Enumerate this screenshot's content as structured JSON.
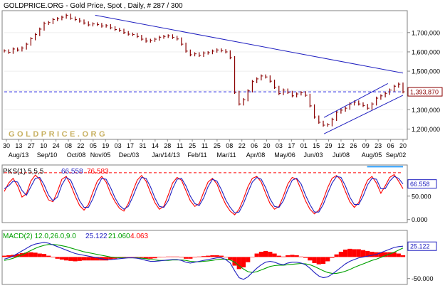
{
  "header": {
    "title": "GOLDPRICE.ORG - Gold Price, Spot , Daily, # 287 / 300"
  },
  "watermark": "GOLDPRICE.ORG",
  "colors": {
    "background": "#ffffff",
    "frame": "#808080",
    "gold": "#c8b060",
    "price_bar": "#8a0000",
    "last_close": "#8a0000",
    "trendline": "#2020c0",
    "support_line": "#2020e0",
    "pks_fast": "#ff0000",
    "pks_slow": "#2020c0",
    "pks_hline": "#30a0ff",
    "pks_ref": "#ff0000",
    "macd_hist": "#ff0000",
    "macd_line": "#2020c0",
    "signal_line": "#00a000"
  },
  "x_axis": {
    "day_labels": [
      "30",
      "13",
      "27",
      "10",
      "24",
      "08",
      "22",
      "05",
      "19",
      "03",
      "17",
      "31",
      "14",
      "28",
      "11",
      "25",
      "11",
      "25",
      "08",
      "22",
      "06",
      "20",
      "03",
      "17",
      "01",
      "15",
      "29",
      "12",
      "26",
      "09",
      "23",
      "06",
      "20"
    ],
    "month_labels": [
      "Aug/13",
      "Sep/10",
      "Oct/08",
      "Nov/05",
      "Dec/03",
      "Jan/14/13",
      "Feb/11",
      "Mar/11",
      "Apr/08",
      "May/06",
      "Jun/03",
      "Jul/08",
      "Aug/05",
      "Sep/02"
    ]
  },
  "chart_data": [
    {
      "panel": "price",
      "type": "line",
      "title": "GOLDPRICE.ORG - Gold Price, Spot , Daily, # 287 / 300",
      "y_ticks": [
        "1,700,000",
        "1,600,000",
        "1,500,000",
        "1,400,000",
        "1,300,000",
        "1,200,000"
      ],
      "ylim": [
        1150,
        1810
      ],
      "last_value_label": "1,393,870",
      "support_level": 1393,
      "series": [
        {
          "values": [
            1605,
            1598,
            1615,
            1610,
            1620,
            1640,
            1668,
            1690,
            1718,
            1748,
            1752,
            1768,
            1772,
            1780,
            1790,
            1775,
            1768,
            1760,
            1750,
            1740,
            1745,
            1742,
            1734,
            1736,
            1725,
            1716,
            1712,
            1700,
            1692,
            1690,
            1680,
            1666,
            1656,
            1660,
            1666,
            1676,
            1680,
            1683,
            1675,
            1667,
            1640,
            1604,
            1585,
            1590,
            1582,
            1594,
            1596,
            1604,
            1610,
            1606,
            1600,
            1570,
            1390,
            1330,
            1352,
            1398,
            1446,
            1460,
            1475,
            1470,
            1448,
            1416,
            1384,
            1402,
            1390,
            1372,
            1382,
            1388,
            1375,
            1320,
            1262,
            1235,
            1220,
            1222,
            1250,
            1288,
            1298,
            1308,
            1330,
            1340,
            1330,
            1322,
            1308,
            1330,
            1360,
            1372,
            1385,
            1402,
            1422,
            1433,
            1393
          ]
        }
      ],
      "trendlines": [
        {
          "name": "downtrend",
          "from": [
            0.228,
            1790
          ],
          "to": [
            1.0,
            1490
          ]
        },
        {
          "name": "channel upper",
          "from": [
            0.802,
            1260
          ],
          "to": [
            0.962,
            1436
          ]
        },
        {
          "name": "channel lower",
          "from": [
            0.802,
            1175
          ],
          "to": [
            1.0,
            1375
          ]
        }
      ]
    },
    {
      "panel": "pks",
      "type": "line",
      "label": "PKS(1) 5,5,5",
      "value_1": "66.558",
      "value_2": "76.583",
      "last_value_label": "66.558",
      "y_ticks": [
        "50.000",
        "0.000"
      ],
      "ylim": [
        -5,
        115
      ],
      "reference_level": 100,
      "signal_level": 113,
      "series": [
        {
          "values": [
            60,
            78,
            88,
            72,
            48,
            55,
            82,
            95,
            86,
            62,
            42,
            38,
            60,
            86,
            92,
            74,
            50,
            30,
            20,
            32,
            58,
            82,
            92,
            80,
            56,
            38,
            24,
            18,
            34,
            60,
            84,
            94,
            82,
            58,
            36,
            22,
            28,
            52,
            78,
            90,
            84,
            62,
            40,
            28,
            34,
            58,
            80,
            88,
            76,
            52,
            32,
            18,
            10,
            22,
            44,
            70,
            88,
            92,
            80,
            56,
            34,
            22,
            28,
            50,
            76,
            90,
            86,
            64,
            40,
            22,
            12,
            20,
            42,
            68,
            88,
            94,
            84,
            60,
            38,
            26,
            36,
            62,
            84,
            92,
            78,
            56,
            72,
            90,
            96,
            82,
            66
          ]
        },
        {
          "values": [
            66,
            72,
            82,
            80,
            62,
            52,
            70,
            88,
            90,
            74,
            52,
            40,
            48,
            74,
            90,
            84,
            62,
            40,
            26,
            26,
            44,
            70,
            88,
            86,
            68,
            46,
            30,
            22,
            28,
            48,
            72,
            90,
            88,
            70,
            46,
            28,
            26,
            40,
            66,
            86,
            88,
            72,
            50,
            34,
            30,
            46,
            70,
            86,
            82,
            64,
            42,
            26,
            14,
            16,
            34,
            58,
            80,
            90,
            86,
            68,
            44,
            28,
            26,
            40,
            64,
            84,
            88,
            76,
            52,
            32,
            16,
            16,
            32,
            56,
            78,
            92,
            90,
            72,
            48,
            32,
            32,
            50,
            74,
            88,
            86,
            66,
            66,
            82,
            92,
            88,
            76
          ]
        }
      ]
    },
    {
      "panel": "macd",
      "type": "line",
      "label": "MACD(2) 12.0,26.0,9.0",
      "value_1": "25.122",
      "value_2": "21.060",
      "value_3": "4.063",
      "last_value_label": "25.122",
      "y_ticks": [
        "-50.000"
      ],
      "ylim": [
        -62,
        60
      ],
      "series": [
        {
          "values": [
            -5,
            -2,
            2,
            8,
            14,
            20,
            26,
            30,
            32,
            34,
            32,
            28,
            24,
            20,
            16,
            12,
            8,
            6,
            4,
            2,
            0,
            -2,
            -4,
            -6,
            -6,
            -5,
            -4,
            -3,
            -2,
            -2,
            -3,
            -5,
            -8,
            -10,
            -10,
            -9,
            -8,
            -7,
            -6,
            -6,
            -8,
            -12,
            -14,
            -12,
            -10,
            -8,
            -6,
            -4,
            -2,
            -2,
            -6,
            -14,
            -32,
            -48,
            -52,
            -46,
            -36,
            -26,
            -18,
            -12,
            -10,
            -12,
            -16,
            -18,
            -14,
            -12,
            -12,
            -14,
            -18,
            -26,
            -36,
            -44,
            -48,
            -46,
            -40,
            -32,
            -24,
            -16,
            -10,
            -6,
            -2,
            0,
            2,
            4,
            6,
            10,
            14,
            18,
            22,
            24,
            25
          ]
        },
        {
          "values": [
            -8,
            -6,
            -3,
            1,
            5,
            10,
            15,
            20,
            24,
            27,
            29,
            29,
            28,
            26,
            24,
            21,
            18,
            15,
            12,
            10,
            8,
            6,
            4,
            2,
            0,
            -1,
            -2,
            -2,
            -2,
            -2,
            -2,
            -3,
            -4,
            -6,
            -7,
            -8,
            -8,
            -8,
            -7,
            -7,
            -7,
            -8,
            -10,
            -11,
            -11,
            -10,
            -9,
            -8,
            -6,
            -5,
            -5,
            -7,
            -12,
            -20,
            -28,
            -34,
            -36,
            -34,
            -30,
            -26,
            -22,
            -20,
            -19,
            -19,
            -18,
            -17,
            -16,
            -15,
            -16,
            -18,
            -22,
            -27,
            -32,
            -36,
            -38,
            -38,
            -36,
            -33,
            -29,
            -24,
            -20,
            -16,
            -12,
            -8,
            -5,
            -1,
            3,
            7,
            11,
            16,
            21
          ]
        },
        {
          "values": [
            3,
            4,
            5,
            7,
            9,
            10,
            11,
            10,
            8,
            7,
            3,
            -1,
            -4,
            -6,
            -8,
            -9,
            -10,
            -9,
            -8,
            -8,
            -8,
            -8,
            -8,
            -8,
            -6,
            -4,
            -2,
            -1,
            0,
            0,
            -1,
            -2,
            -4,
            -4,
            -3,
            -1,
            0,
            1,
            1,
            1,
            -1,
            -4,
            -4,
            -1,
            1,
            2,
            3,
            4,
            4,
            3,
            -1,
            -7,
            -20,
            -28,
            -24,
            -12,
            0,
            8,
            12,
            14,
            12,
            8,
            3,
            1,
            4,
            5,
            4,
            1,
            -2,
            -8,
            -14,
            -17,
            -16,
            -10,
            -2,
            6,
            12,
            17,
            19,
            18,
            18,
            16,
            14,
            12,
            11,
            11,
            11,
            11,
            11,
            8,
            4
          ]
        }
      ]
    }
  ]
}
